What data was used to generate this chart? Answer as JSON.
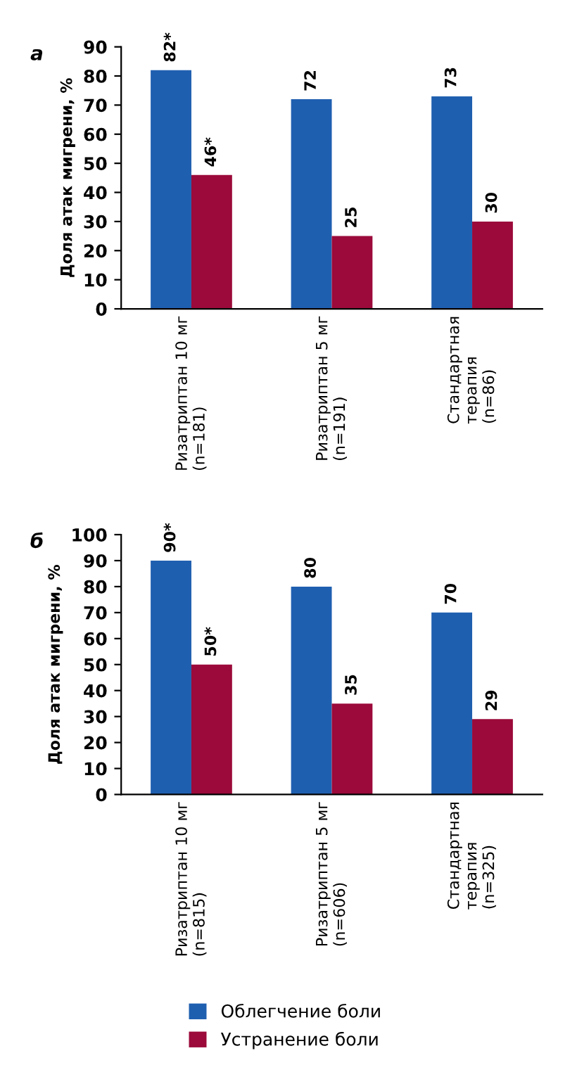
{
  "chart_data": [
    {
      "type": "bar",
      "title": "а",
      "ylabel": "Доля атак мигрени, %",
      "categories": [
        "Ризатриптан 10 мг\n(n=181)",
        "Ризатриптан 5 мг\n(n=191)",
        "Стандартная\nтерапия\n(n=86)"
      ],
      "series": [
        {
          "name": "Облегчение боли",
          "color": "#1f5fb0",
          "values": [
            82,
            72,
            73
          ],
          "value_labels": [
            "82*",
            "72",
            "73"
          ]
        },
        {
          "name": "Устранение боли",
          "color": "#9b0a3a",
          "values": [
            46,
            25,
            30
          ],
          "value_labels": [
            "46*",
            "25",
            "30"
          ]
        }
      ],
      "ylim": [
        0,
        90
      ],
      "yticks": [
        0,
        10,
        20,
        30,
        40,
        50,
        60,
        70,
        80,
        90
      ],
      "grid": false,
      "legend": "bottom"
    },
    {
      "type": "bar",
      "title": "б",
      "ylabel": "Доля атак мигрени, %",
      "categories": [
        "Ризатриптан 10 мг\n(n=815)",
        "Ризатриптан 5 мг\n(n=606)",
        "Стандартная\nтерапия\n(n=325)"
      ],
      "series": [
        {
          "color": "#1f5fb0",
          "values": [
            90,
            80,
            70
          ],
          "value_labels": [
            "90*",
            "80",
            "70"
          ]
        },
        {
          "color": "#9b0a3a",
          "values": [
            50,
            35,
            29
          ],
          "value_labels": [
            "50*",
            "35",
            "29"
          ]
        }
      ],
      "ylim": [
        0,
        100
      ],
      "yticks": [
        0,
        10,
        20,
        30,
        40,
        50,
        60,
        70,
        80,
        90,
        100
      ],
      "grid": false
    }
  ]
}
